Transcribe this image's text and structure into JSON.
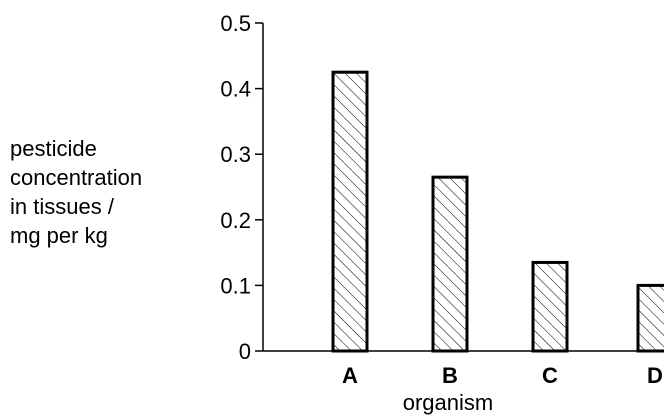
{
  "chart_data": {
    "type": "bar",
    "title": "",
    "xlabel": "organism",
    "ylabel_lines": [
      "pesticide",
      "concentration",
      "in tissues /",
      "mg per kg"
    ],
    "categories": [
      "A",
      "B",
      "C",
      "D"
    ],
    "values": [
      0.425,
      0.265,
      0.135,
      0.1
    ],
    "ylim": [
      0,
      0.5
    ],
    "yticks": [
      0,
      0.1,
      0.2,
      0.3,
      0.4,
      0.5
    ],
    "ytick_labels": [
      "0",
      "0.1",
      "0.2",
      "0.3",
      "0.4",
      "0.5"
    ],
    "bar_fill": "hatched",
    "grid": false,
    "legend": "none"
  }
}
